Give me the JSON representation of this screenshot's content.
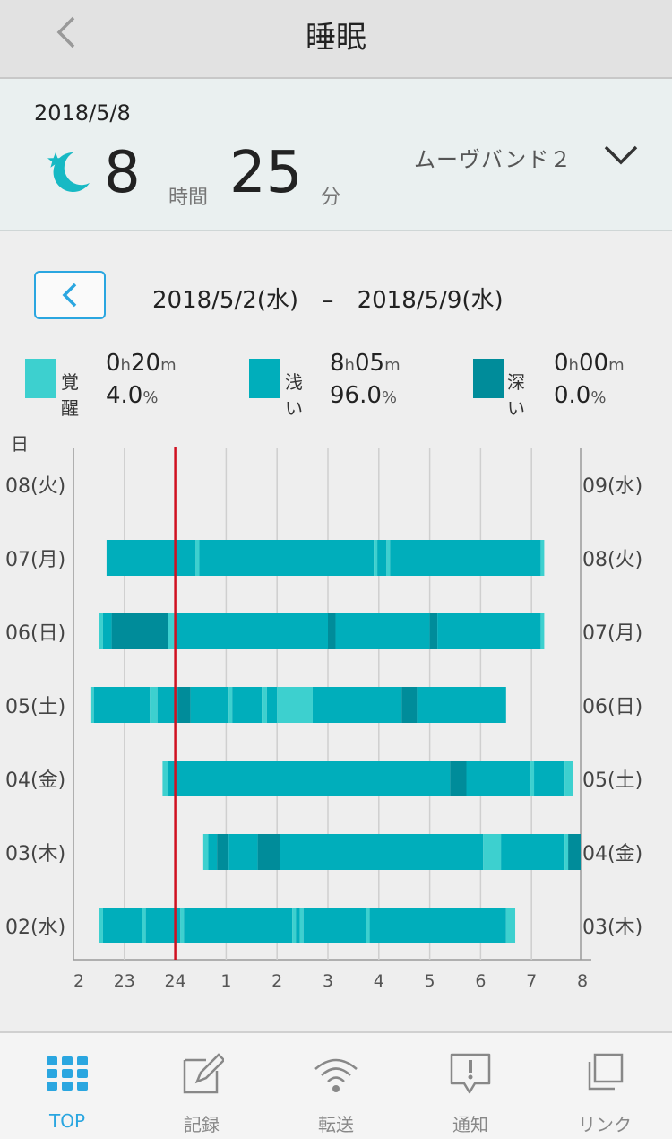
{
  "nav": {
    "title": "睡眠"
  },
  "summary": {
    "date": "2018/5/8",
    "hours": "8",
    "hours_unit": "時間",
    "minutes": "25",
    "minutes_unit": "分",
    "device": "ムーヴバンド２"
  },
  "period": {
    "start": "2018/5/2(水)",
    "sep": "–",
    "end": "2018/5/9(水)"
  },
  "legend": [
    {
      "label": "覚醒",
      "h": "0",
      "m": "20",
      "pct": "4.0",
      "color": "#3dd0cf"
    },
    {
      "label": "浅い",
      "h": "8",
      "m": "05",
      "pct": "96.0",
      "color": "#00aebb"
    },
    {
      "label": "深い",
      "h": "0",
      "m": "00",
      "pct": "0.0",
      "color": "#008c9a"
    }
  ],
  "legend_units": {
    "h": "h",
    "m": "m",
    "pct": "%"
  },
  "colors": {
    "awake": "#3dd0cf",
    "light": "#00aebb",
    "deep": "#008c9a",
    "accent": "#2aa6e0",
    "reference_line": "#d01020"
  },
  "chart_data": {
    "type": "bar",
    "orientation": "horizontal-timeline",
    "y_axis_title": "日",
    "x_ticks": [
      "2",
      "23",
      "24",
      "1",
      "2",
      "3",
      "4",
      "5",
      "6",
      "7",
      "8"
    ],
    "x_range_hours_from_22": [
      0,
      10
    ],
    "reference_line_at": "24",
    "rows": [
      {
        "left": "08(火)",
        "right": "09(水)",
        "segments": []
      },
      {
        "left": "07(月)",
        "right": "08(火)",
        "segments": [
          {
            "start": 0.65,
            "end": 2.4,
            "stage": "light"
          },
          {
            "start": 2.4,
            "end": 2.47,
            "stage": "awake"
          },
          {
            "start": 2.47,
            "end": 5.9,
            "stage": "light"
          },
          {
            "start": 5.9,
            "end": 5.97,
            "stage": "awake"
          },
          {
            "start": 5.97,
            "end": 6.15,
            "stage": "light"
          },
          {
            "start": 6.15,
            "end": 6.22,
            "stage": "awake"
          },
          {
            "start": 6.22,
            "end": 9.18,
            "stage": "light"
          },
          {
            "start": 9.18,
            "end": 9.25,
            "stage": "awake"
          }
        ]
      },
      {
        "left": "06(日)",
        "right": "07(月)",
        "segments": [
          {
            "start": 0.5,
            "end": 0.58,
            "stage": "awake"
          },
          {
            "start": 0.58,
            "end": 0.75,
            "stage": "light"
          },
          {
            "start": 0.75,
            "end": 1.85,
            "stage": "deep"
          },
          {
            "start": 1.85,
            "end": 2.0,
            "stage": "awake"
          },
          {
            "start": 2.0,
            "end": 5.0,
            "stage": "light"
          },
          {
            "start": 5.0,
            "end": 5.15,
            "stage": "deep"
          },
          {
            "start": 5.15,
            "end": 7.0,
            "stage": "light"
          },
          {
            "start": 7.0,
            "end": 7.15,
            "stage": "deep"
          },
          {
            "start": 7.15,
            "end": 9.18,
            "stage": "light"
          },
          {
            "start": 9.18,
            "end": 9.25,
            "stage": "awake"
          }
        ]
      },
      {
        "left": "05(土)",
        "right": "06(日)",
        "segments": [
          {
            "start": 0.35,
            "end": 0.4,
            "stage": "awake"
          },
          {
            "start": 0.4,
            "end": 1.5,
            "stage": "light"
          },
          {
            "start": 1.5,
            "end": 1.65,
            "stage": "awake"
          },
          {
            "start": 1.65,
            "end": 2.05,
            "stage": "light"
          },
          {
            "start": 2.05,
            "end": 2.3,
            "stage": "deep"
          },
          {
            "start": 2.3,
            "end": 3.05,
            "stage": "light"
          },
          {
            "start": 3.05,
            "end": 3.12,
            "stage": "awake"
          },
          {
            "start": 3.12,
            "end": 3.7,
            "stage": "light"
          },
          {
            "start": 3.7,
            "end": 3.8,
            "stage": "awake"
          },
          {
            "start": 3.8,
            "end": 4.0,
            "stage": "light"
          },
          {
            "start": 4.0,
            "end": 4.7,
            "stage": "awake"
          },
          {
            "start": 4.7,
            "end": 6.45,
            "stage": "light"
          },
          {
            "start": 6.45,
            "end": 6.75,
            "stage": "deep"
          },
          {
            "start": 6.75,
            "end": 8.5,
            "stage": "light"
          }
        ]
      },
      {
        "left": "04(金)",
        "right": "05(土)",
        "segments": [
          {
            "start": 1.75,
            "end": 1.85,
            "stage": "awake"
          },
          {
            "start": 1.85,
            "end": 7.4,
            "stage": "light"
          },
          {
            "start": 7.4,
            "end": 7.72,
            "stage": "deep"
          },
          {
            "start": 7.72,
            "end": 8.98,
            "stage": "light"
          },
          {
            "start": 8.98,
            "end": 9.05,
            "stage": "awake"
          },
          {
            "start": 9.05,
            "end": 9.65,
            "stage": "light"
          },
          {
            "start": 9.65,
            "end": 9.82,
            "stage": "awake"
          }
        ]
      },
      {
        "left": "03(木)",
        "right": "04(金)",
        "segments": [
          {
            "start": 2.55,
            "end": 2.65,
            "stage": "awake"
          },
          {
            "start": 2.65,
            "end": 2.82,
            "stage": "light"
          },
          {
            "start": 2.82,
            "end": 3.05,
            "stage": "deep"
          },
          {
            "start": 3.05,
            "end": 3.62,
            "stage": "light"
          },
          {
            "start": 3.62,
            "end": 4.05,
            "stage": "deep"
          },
          {
            "start": 4.05,
            "end": 8.05,
            "stage": "light"
          },
          {
            "start": 8.05,
            "end": 8.4,
            "stage": "awake"
          },
          {
            "start": 8.4,
            "end": 9.65,
            "stage": "light"
          },
          {
            "start": 9.65,
            "end": 9.72,
            "stage": "awake"
          },
          {
            "start": 9.72,
            "end": 10.0,
            "stage": "deep"
          }
        ]
      },
      {
        "left": "02(水)",
        "right": "03(木)",
        "segments": [
          {
            "start": 0.5,
            "end": 0.58,
            "stage": "awake"
          },
          {
            "start": 0.58,
            "end": 1.35,
            "stage": "light"
          },
          {
            "start": 1.35,
            "end": 1.42,
            "stage": "awake"
          },
          {
            "start": 1.42,
            "end": 2.1,
            "stage": "light"
          },
          {
            "start": 2.1,
            "end": 2.17,
            "stage": "awake"
          },
          {
            "start": 2.17,
            "end": 4.3,
            "stage": "light"
          },
          {
            "start": 4.3,
            "end": 4.37,
            "stage": "awake"
          },
          {
            "start": 4.37,
            "end": 4.45,
            "stage": "light"
          },
          {
            "start": 4.45,
            "end": 4.52,
            "stage": "awake"
          },
          {
            "start": 4.52,
            "end": 5.75,
            "stage": "light"
          },
          {
            "start": 5.75,
            "end": 5.82,
            "stage": "awake"
          },
          {
            "start": 5.82,
            "end": 8.5,
            "stage": "light"
          },
          {
            "start": 8.5,
            "end": 8.68,
            "stage": "awake"
          }
        ]
      }
    ]
  },
  "tabs": [
    {
      "label": "TOP",
      "icon": "grid-icon",
      "active": true
    },
    {
      "label": "記録",
      "icon": "edit-icon",
      "active": false
    },
    {
      "label": "転送",
      "icon": "wifi-icon",
      "active": false
    },
    {
      "label": "通知",
      "icon": "notice-icon",
      "active": false
    },
    {
      "label": "リンク",
      "icon": "link-icon",
      "active": false
    }
  ]
}
